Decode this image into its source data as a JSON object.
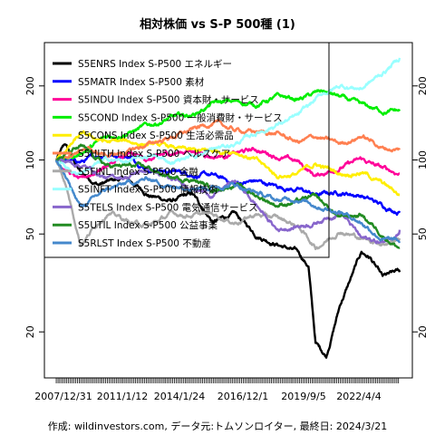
{
  "chart_data": {
    "type": "line",
    "title": "相対株価 vs S-P 500種 (1)",
    "footer": "作成: wildinvestors.com, データ元:トムソンロイター, 最終日: 2024/3/21",
    "xlabel": "",
    "ylabel": "",
    "x_tick_labels": [
      "2007/12/31",
      "2011/1/12",
      "2014/1/24",
      "2016/12/1",
      "2019/9/5",
      "2022/4/4"
    ],
    "x_range": [
      "2007-12-31",
      "2024-03-21"
    ],
    "y_scale": "log",
    "ylim": [
      13,
      300
    ],
    "y_ticks": [
      20,
      50,
      100,
      200
    ],
    "grid": false,
    "legend_position": "top-left",
    "series": [
      {
        "name": "S5ENRS Index S-P500 エネルギー",
        "color": "#000000",
        "points": [
          [
            "2007-12-31",
            100
          ],
          [
            "2008-06-01",
            115
          ],
          [
            "2009-03-01",
            88
          ],
          [
            "2010-01-01",
            80
          ],
          [
            "2011-04-01",
            84
          ],
          [
            "2012-06-01",
            72
          ],
          [
            "2013-06-01",
            68
          ],
          [
            "2014-06-01",
            72
          ],
          [
            "2015-06-01",
            56
          ],
          [
            "2016-06-01",
            60
          ],
          [
            "2017-06-01",
            50
          ],
          [
            "2018-06-01",
            46
          ],
          [
            "2019-06-01",
            42
          ],
          [
            "2019-12-01",
            37
          ],
          [
            "2020-04-01",
            18
          ],
          [
            "2020-10-01",
            16
          ],
          [
            "2021-06-01",
            26
          ],
          [
            "2022-06-01",
            42
          ],
          [
            "2022-11-01",
            40
          ],
          [
            "2023-06-01",
            33
          ],
          [
            "2024-03-21",
            35
          ]
        ]
      },
      {
        "name": "S5MATR Index S-P500 素材",
        "color": "#0000ff",
        "points": [
          [
            "2007-12-31",
            100
          ],
          [
            "2009-03-01",
            98
          ],
          [
            "2010-06-01",
            106
          ],
          [
            "2011-06-01",
            104
          ],
          [
            "2012-06-01",
            92
          ],
          [
            "2013-06-01",
            90
          ],
          [
            "2014-06-01",
            88
          ],
          [
            "2015-06-01",
            86
          ],
          [
            "2016-06-01",
            80
          ],
          [
            "2017-06-01",
            82
          ],
          [
            "2018-06-01",
            78
          ],
          [
            "2019-06-01",
            76
          ],
          [
            "2020-04-01",
            72
          ],
          [
            "2021-06-01",
            74
          ],
          [
            "2022-06-01",
            72
          ],
          [
            "2023-06-01",
            65
          ],
          [
            "2024-03-21",
            62
          ]
        ]
      },
      {
        "name": "S5INDU Index S-P500 資本財・サービス",
        "color": "#ff0099",
        "points": [
          [
            "2007-12-31",
            100
          ],
          [
            "2009-03-01",
            82
          ],
          [
            "2010-06-01",
            96
          ],
          [
            "2011-06-01",
            104
          ],
          [
            "2012-06-01",
            100
          ],
          [
            "2013-06-01",
            106
          ],
          [
            "2014-06-01",
            110
          ],
          [
            "2015-06-01",
            104
          ],
          [
            "2016-06-01",
            106
          ],
          [
            "2017-06-01",
            110
          ],
          [
            "2018-06-01",
            104
          ],
          [
            "2019-06-01",
            98
          ],
          [
            "2020-04-01",
            86
          ],
          [
            "2021-06-01",
            94
          ],
          [
            "2022-06-01",
            100
          ],
          [
            "2023-06-01",
            92
          ],
          [
            "2024-03-21",
            88
          ]
        ]
      },
      {
        "name": "S5COND Index S-P500 一般消費財・サービス",
        "color": "#00ee00",
        "points": [
          [
            "2007-12-31",
            100
          ],
          [
            "2008-12-01",
            104
          ],
          [
            "2010-06-01",
            124
          ],
          [
            "2011-06-01",
            130
          ],
          [
            "2012-06-01",
            138
          ],
          [
            "2013-06-01",
            148
          ],
          [
            "2014-06-01",
            152
          ],
          [
            "2015-06-01",
            170
          ],
          [
            "2016-06-01",
            172
          ],
          [
            "2017-06-01",
            168
          ],
          [
            "2018-06-01",
            180
          ],
          [
            "2019-06-01",
            176
          ],
          [
            "2020-08-01",
            190
          ],
          [
            "2021-06-01",
            180
          ],
          [
            "2022-06-01",
            165
          ],
          [
            "2023-06-01",
            158
          ],
          [
            "2024-03-21",
            158
          ]
        ]
      },
      {
        "name": "S5CONS Index S-P500 生活必需品",
        "color": "#ffee00",
        "points": [
          [
            "2007-12-31",
            100
          ],
          [
            "2009-03-01",
            126
          ],
          [
            "2010-06-01",
            118
          ],
          [
            "2011-06-01",
            118
          ],
          [
            "2012-06-01",
            116
          ],
          [
            "2013-06-01",
            112
          ],
          [
            "2014-06-01",
            108
          ],
          [
            "2015-06-01",
            108
          ],
          [
            "2016-06-01",
            110
          ],
          [
            "2017-06-01",
            100
          ],
          [
            "2018-06-01",
            86
          ],
          [
            "2019-06-01",
            88
          ],
          [
            "2020-04-01",
            96
          ],
          [
            "2021-06-01",
            88
          ],
          [
            "2022-06-01",
            90
          ],
          [
            "2023-06-01",
            80
          ],
          [
            "2024-03-21",
            72
          ]
        ]
      },
      {
        "name": "S5HLTH Index S-P500 ヘルスケア",
        "color": "#ff7f50",
        "points": [
          [
            "2007-12-31",
            100
          ],
          [
            "2009-03-01",
            112
          ],
          [
            "2010-06-01",
            104
          ],
          [
            "2011-06-01",
            108
          ],
          [
            "2012-06-01",
            116
          ],
          [
            "2013-06-01",
            124
          ],
          [
            "2014-06-01",
            132
          ],
          [
            "2015-06-01",
            142
          ],
          [
            "2016-06-01",
            132
          ],
          [
            "2017-06-01",
            130
          ],
          [
            "2018-06-01",
            128
          ],
          [
            "2019-06-01",
            118
          ],
          [
            "2020-04-01",
            124
          ],
          [
            "2021-06-01",
            116
          ],
          [
            "2022-06-01",
            126
          ],
          [
            "2023-06-01",
            112
          ],
          [
            "2024-03-21",
            110
          ]
        ]
      },
      {
        "name": "S5FINL Index S-P500 金融",
        "color": "#aaaaaa",
        "points": [
          [
            "2007-12-31",
            100
          ],
          [
            "2008-06-01",
            82
          ],
          [
            "2009-03-01",
            46
          ],
          [
            "2010-06-01",
            62
          ],
          [
            "2011-06-01",
            56
          ],
          [
            "2012-06-01",
            54
          ],
          [
            "2013-06-01",
            60
          ],
          [
            "2014-06-01",
            60
          ],
          [
            "2015-06-01",
            60
          ],
          [
            "2016-06-01",
            56
          ],
          [
            "2017-06-01",
            60
          ],
          [
            "2018-06-01",
            58
          ],
          [
            "2019-06-01",
            54
          ],
          [
            "2020-04-01",
            44
          ],
          [
            "2021-06-01",
            52
          ],
          [
            "2022-06-01",
            48
          ],
          [
            "2023-06-01",
            46
          ],
          [
            "2024-03-21",
            48
          ]
        ]
      },
      {
        "name": "S5INFT Index S-P500 情報技術",
        "color": "#99ffff",
        "points": [
          [
            "2007-12-31",
            100
          ],
          [
            "2008-12-01",
            88
          ],
          [
            "2010-06-01",
            100
          ],
          [
            "2011-06-01",
            98
          ],
          [
            "2012-06-01",
            104
          ],
          [
            "2013-06-01",
            98
          ],
          [
            "2014-06-01",
            104
          ],
          [
            "2015-06-01",
            110
          ],
          [
            "2016-06-01",
            116
          ],
          [
            "2017-06-01",
            128
          ],
          [
            "2018-06-01",
            140
          ],
          [
            "2019-06-01",
            150
          ],
          [
            "2020-08-01",
            185
          ],
          [
            "2021-06-01",
            200
          ],
          [
            "2022-06-01",
            196
          ],
          [
            "2023-06-01",
            225
          ],
          [
            "2024-03-21",
            260
          ]
        ]
      },
      {
        "name": "S5TELS Index S-P500 電気通信サービス",
        "color": "#8866cc",
        "points": [
          [
            "2007-12-31",
            100
          ],
          [
            "2009-03-01",
            96
          ],
          [
            "2010-06-01",
            84
          ],
          [
            "2011-06-01",
            86
          ],
          [
            "2012-06-01",
            92
          ],
          [
            "2013-06-01",
            82
          ],
          [
            "2014-06-01",
            78
          ],
          [
            "2015-06-01",
            72
          ],
          [
            "2016-06-01",
            82
          ],
          [
            "2017-06-01",
            66
          ],
          [
            "2018-06-01",
            52
          ],
          [
            "2019-06-01",
            54
          ],
          [
            "2020-04-01",
            56
          ],
          [
            "2021-06-01",
            62
          ],
          [
            "2022-06-01",
            48
          ],
          [
            "2023-06-01",
            46
          ],
          [
            "2024-03-21",
            52
          ]
        ]
      },
      {
        "name": "S5UTIL Index S-P500 公益事業",
        "color": "#228b22",
        "points": [
          [
            "2007-12-31",
            100
          ],
          [
            "2009-03-01",
            112
          ],
          [
            "2010-06-01",
            94
          ],
          [
            "2011-06-01",
            94
          ],
          [
            "2012-06-01",
            92
          ],
          [
            "2013-06-01",
            84
          ],
          [
            "2014-06-01",
            84
          ],
          [
            "2015-06-01",
            76
          ],
          [
            "2016-06-01",
            80
          ],
          [
            "2017-06-01",
            72
          ],
          [
            "2018-06-01",
            66
          ],
          [
            "2019-06-01",
            68
          ],
          [
            "2020-04-01",
            70
          ],
          [
            "2021-06-01",
            58
          ],
          [
            "2022-06-01",
            60
          ],
          [
            "2023-06-01",
            50
          ],
          [
            "2024-03-21",
            44
          ]
        ]
      },
      {
        "name": "S5RLST Index S-P500 不動産",
        "color": "#4488cc",
        "points": [
          [
            "2007-12-31",
            100
          ],
          [
            "2009-03-01",
            64
          ],
          [
            "2010-06-01",
            76
          ],
          [
            "2011-06-01",
            80
          ],
          [
            "2012-06-01",
            84
          ],
          [
            "2013-06-01",
            78
          ],
          [
            "2014-06-01",
            80
          ],
          [
            "2015-06-01",
            78
          ],
          [
            "2016-06-01",
            80
          ],
          [
            "2017-06-01",
            74
          ],
          [
            "2018-06-01",
            68
          ],
          [
            "2019-06-01",
            70
          ],
          [
            "2020-04-01",
            66
          ],
          [
            "2021-06-01",
            62
          ],
          [
            "2022-06-01",
            56
          ],
          [
            "2023-06-01",
            48
          ],
          [
            "2024-03-21",
            46
          ]
        ]
      }
    ]
  }
}
